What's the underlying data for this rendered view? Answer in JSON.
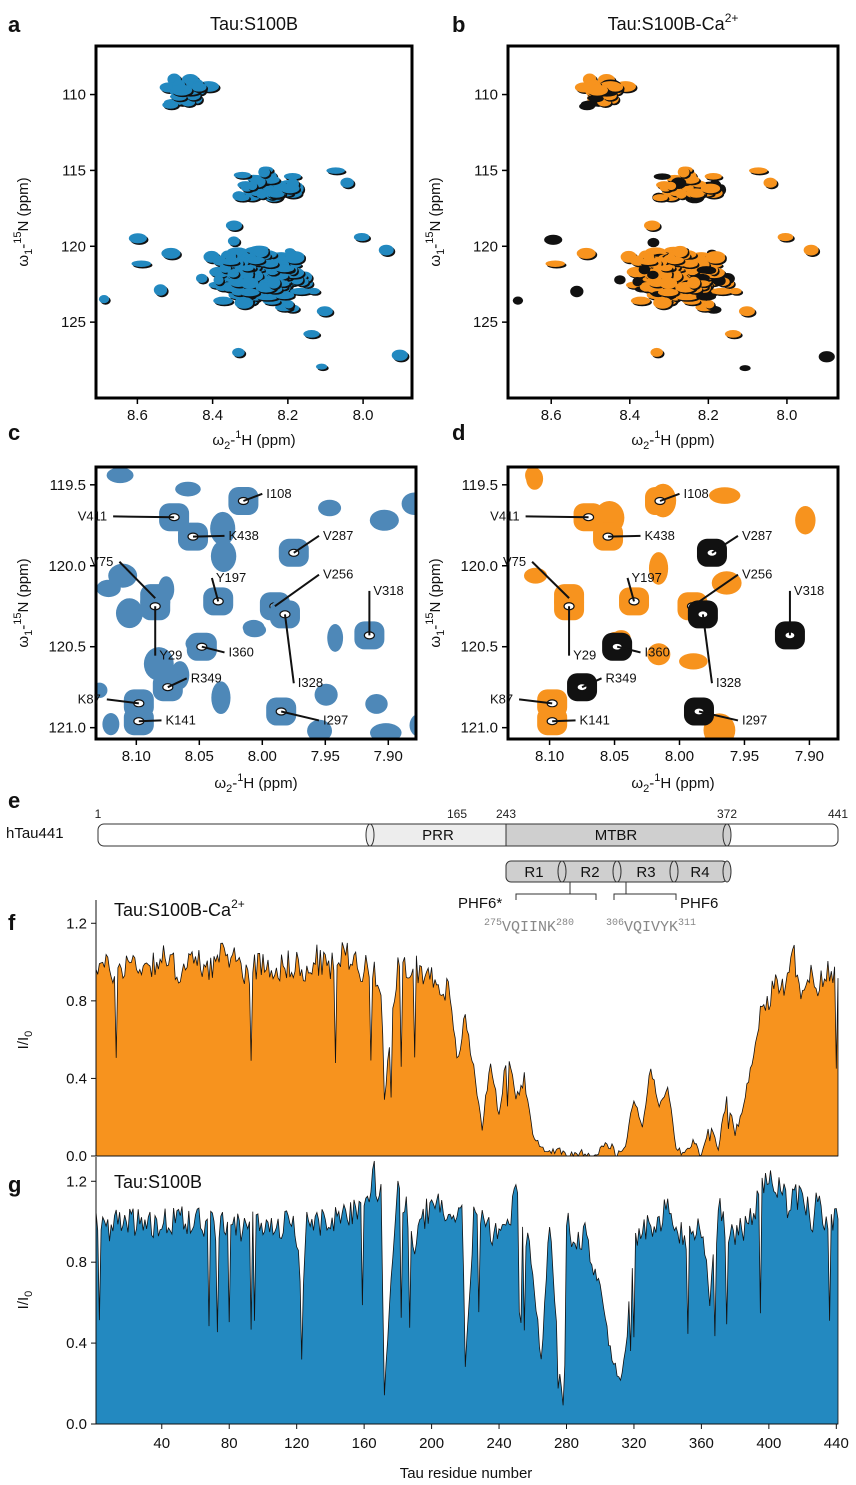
{
  "panels": {
    "a": {
      "letter": "a",
      "title": "Tau:S100B"
    },
    "b": {
      "letter": "b",
      "title_main": "Tau:S100B-Ca",
      "title_sup": "2+"
    },
    "c": {
      "letter": "c"
    },
    "d": {
      "letter": "d"
    },
    "e": {
      "letter": "e"
    },
    "f": {
      "letter": "f",
      "title_main": "Tau:S100B-Ca",
      "title_sup": "2+"
    },
    "g": {
      "letter": "g",
      "title": "Tau:S100B"
    }
  },
  "spectra_axes": {
    "x_label": "ω2-1H (ppm)",
    "y_label": "ω1-15N (ppm)",
    "full_x_ticks": [
      "8.6",
      "8.4",
      "8.2",
      "8.0"
    ],
    "full_y_ticks": [
      "110",
      "115",
      "120",
      "125"
    ],
    "zoom_x_ticks": [
      "8.10",
      "8.05",
      "8.00",
      "7.95",
      "7.90"
    ],
    "zoom_y_ticks": [
      "119.5",
      "120.0",
      "120.5",
      "121.0"
    ]
  },
  "peaks": {
    "c": [
      "I108",
      "V411",
      "K438",
      "V287",
      "V75",
      "Y197",
      "V256",
      "V318",
      "Y29",
      "I360",
      "I328",
      "R349",
      "K87",
      "K141",
      "I297"
    ],
    "d": [
      "I108",
      "V411",
      "K438",
      "V287",
      "V75",
      "Y197",
      "V256",
      "V318",
      "Y29",
      "I360",
      "I328",
      "R349",
      "K87",
      "K141",
      "I297"
    ]
  },
  "domain_map": {
    "protein": "hTau441",
    "positions": [
      "1",
      "165",
      "243",
      "372",
      "441"
    ],
    "domains": [
      "PRR",
      "MTBR"
    ],
    "repeats": [
      "R1",
      "R2",
      "R3",
      "R4"
    ],
    "motifs": [
      {
        "name": "PHF6*",
        "sequence": "VQIINK",
        "start": "275",
        "end": "280"
      },
      {
        "name": "PHF6",
        "sequence": "VQIVYK",
        "start": "306",
        "end": "311"
      }
    ]
  },
  "colors": {
    "orange": "#F7931E",
    "blue": "#2389C0",
    "zoom_blue": "#4E88B8",
    "black": "#111111"
  },
  "chart_data": [
    {
      "type": "area",
      "title": "Tau:S100B-Ca2+",
      "ylabel": "I/I0",
      "xlabel": "Tau residue number",
      "xlim": [
        1,
        441
      ],
      "ylim": [
        0,
        1.2
      ],
      "y_ticks": [
        "0.0",
        "0.4",
        "0.8",
        "1.2"
      ],
      "series": [
        {
          "x": [
            1,
            10,
            20,
            30,
            40,
            50,
            60,
            70,
            80,
            90,
            100,
            110,
            120,
            125,
            130,
            140,
            150,
            160,
            165,
            170,
            172,
            180,
            190,
            200,
            210,
            215,
            220,
            225,
            230,
            235,
            240,
            245,
            250,
            255,
            260,
            265,
            270,
            275,
            280,
            285,
            290,
            295,
            300,
            305,
            310,
            315,
            320,
            325,
            330,
            335,
            340,
            345,
            350,
            355,
            360,
            365,
            370,
            375,
            380,
            385,
            390,
            395,
            400,
            405,
            410,
            415,
            420,
            425,
            430,
            435,
            441
          ],
          "values": [
            1.0,
            0.95,
            1.0,
            0.98,
            1.02,
            0.96,
            1.0,
            0.98,
            1.05,
            0.95,
            1.0,
            0.97,
            1.0,
            0.9,
            1.02,
            0.97,
            1.05,
            0.96,
            0.98,
            0.9,
            0.3,
            0.95,
            0.98,
            0.92,
            0.85,
            0.5,
            0.7,
            0.45,
            0.15,
            0.5,
            0.2,
            0.55,
            0.3,
            0.4,
            0.1,
            0.05,
            0.02,
            0.04,
            0.01,
            0.0,
            0.02,
            0.0,
            0.03,
            0.08,
            0.0,
            0.05,
            0.3,
            0.15,
            0.45,
            0.25,
            0.35,
            0.05,
            0.0,
            0.08,
            0.0,
            0.15,
            0.04,
            0.3,
            0.12,
            0.25,
            0.5,
            0.75,
            0.8,
            0.9,
            0.85,
            1.05,
            0.8,
            0.92,
            0.88,
            0.95,
            0.9
          ]
        }
      ]
    },
    {
      "type": "area",
      "title": "Tau:S100B",
      "ylabel": "I/I0",
      "xlabel": "Tau residue number",
      "xlim": [
        1,
        441
      ],
      "ylim": [
        0,
        1.2
      ],
      "y_ticks": [
        "0.0",
        "0.4",
        "0.8",
        "1.2"
      ],
      "x_ticks": [
        "40",
        "80",
        "120",
        "160",
        "200",
        "240",
        "280",
        "320",
        "360",
        "400",
        "440"
      ],
      "series": [
        {
          "x": [
            1,
            10,
            20,
            30,
            40,
            50,
            60,
            70,
            80,
            90,
            100,
            110,
            120,
            123,
            126,
            130,
            140,
            150,
            160,
            165,
            170,
            172,
            180,
            190,
            200,
            210,
            218,
            220,
            225,
            230,
            240,
            250,
            260,
            265,
            270,
            275,
            278,
            280,
            285,
            290,
            300,
            305,
            310,
            312,
            315,
            320,
            325,
            330,
            340,
            350,
            360,
            365,
            370,
            380,
            390,
            400,
            410,
            420,
            425,
            430,
            435,
            441
          ],
          "values": [
            1.0,
            0.98,
            1.02,
            0.97,
            1.0,
            0.99,
            1.03,
            0.98,
            1.0,
            0.97,
            1.01,
            1.0,
            0.95,
            0.6,
            1.0,
            1.02,
            0.98,
            1.05,
            1.1,
            1.25,
            1.1,
            0.15,
            1.2,
            0.9,
            1.1,
            1.0,
            1.1,
            0.3,
            1.0,
            1.05,
            0.9,
            1.1,
            0.8,
            0.3,
            1.0,
            0.35,
            0.08,
            1.0,
            0.85,
            0.95,
            0.7,
            0.4,
            0.25,
            0.22,
            0.35,
            0.9,
            1.0,
            0.95,
            1.05,
            0.9,
            1.0,
            0.6,
            1.05,
            0.9,
            1.05,
            1.2,
            1.1,
            1.15,
            1.0,
            1.1,
            1.0,
            1.0
          ]
        }
      ]
    }
  ]
}
